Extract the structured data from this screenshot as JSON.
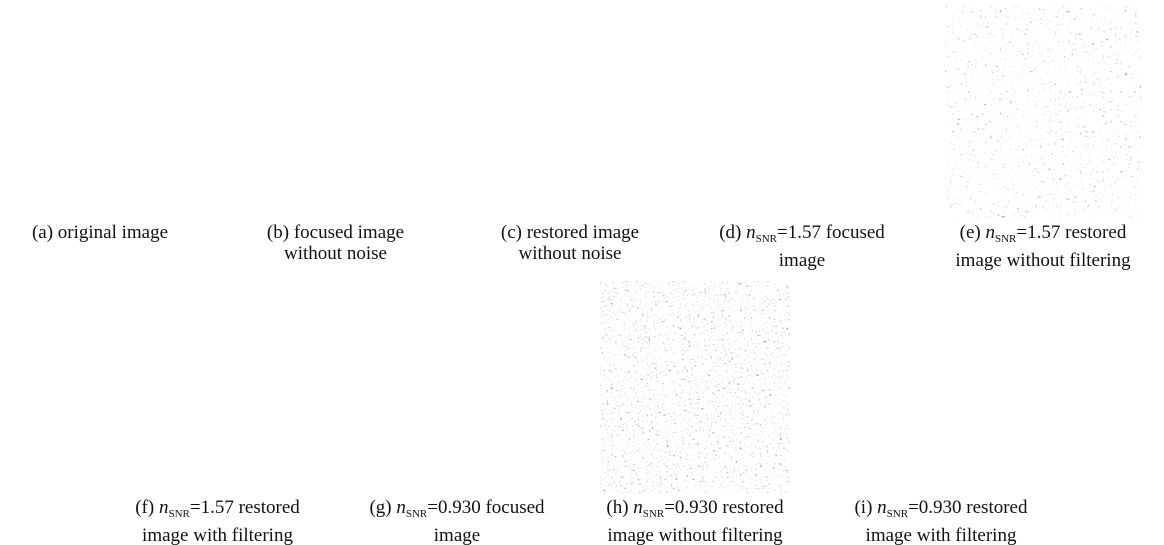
{
  "panels": [
    {
      "label": "(a)",
      "caption_lines": [
        "original image"
      ]
    },
    {
      "label": "(b)",
      "caption_lines": [
        "focused image",
        "without noise"
      ]
    },
    {
      "label": "(c)",
      "caption_lines": [
        "restored image",
        "without noise"
      ]
    },
    {
      "label": "(d)",
      "symbol": "n",
      "subscript": "SNR",
      "caption_lines": [
        "=1.57 focused",
        "image"
      ]
    },
    {
      "label": "(e)",
      "symbol": "n",
      "subscript": "SNR",
      "caption_lines": [
        "=1.57 restored",
        "image without filtering"
      ]
    },
    {
      "label": "(f)",
      "symbol": "n",
      "subscript": "SNR",
      "caption_lines": [
        "=1.57 restored",
        "image with filtering"
      ]
    },
    {
      "label": "(g)",
      "symbol": "n",
      "subscript": "SNR",
      "caption_lines": [
        "=0.930 focused",
        "image"
      ]
    },
    {
      "label": "(h)",
      "symbol": "n",
      "subscript": "SNR",
      "caption_lines": [
        "=0.930 restored",
        "image without filtering"
      ]
    },
    {
      "label": "(i)",
      "symbol": "n",
      "subscript": "SNR",
      "caption_lines": [
        "=0.930 restored",
        "image with filtering"
      ]
    }
  ]
}
